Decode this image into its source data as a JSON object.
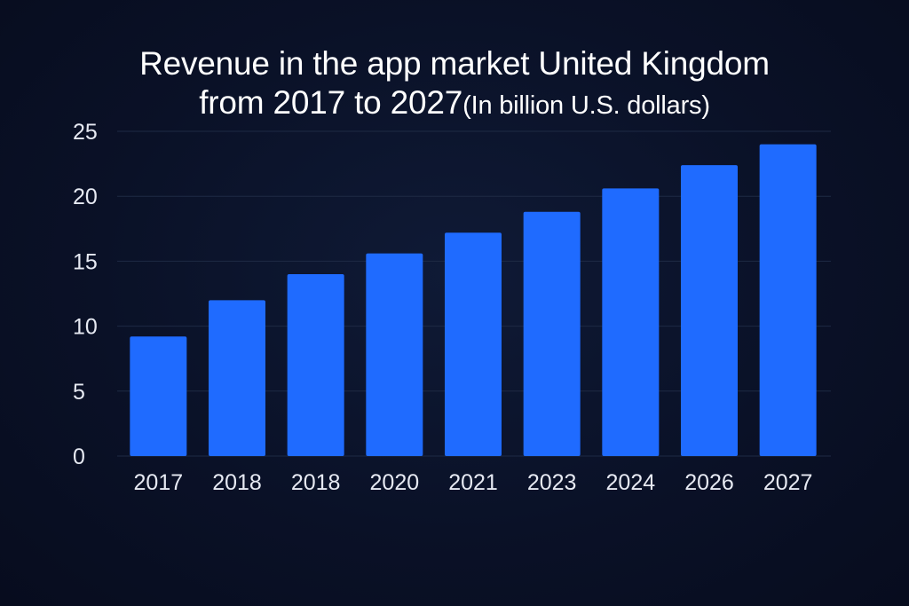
{
  "chart_data": {
    "type": "bar",
    "title_line1": "Revenue in the app market United Kingdom",
    "title_line2": "from 2017 to 2027",
    "subtitle": "(In billion U.S. dollars)",
    "categories": [
      "2017",
      "2018",
      "2018",
      "2020",
      "2021",
      "2023",
      "2024",
      "2026",
      "2027"
    ],
    "values": [
      9.2,
      12.0,
      14.0,
      15.6,
      17.2,
      18.8,
      20.6,
      22.4,
      24.0
    ],
    "ylim": [
      0,
      25
    ],
    "yticks": [
      0,
      5,
      10,
      15,
      20,
      25
    ],
    "xlabel": "",
    "ylabel": "",
    "grid": true,
    "legend": "none",
    "colors": {
      "bar": "#1f6bff",
      "grid": "#1e2a44",
      "background": "#0a1127",
      "text": "#ffffff"
    }
  }
}
